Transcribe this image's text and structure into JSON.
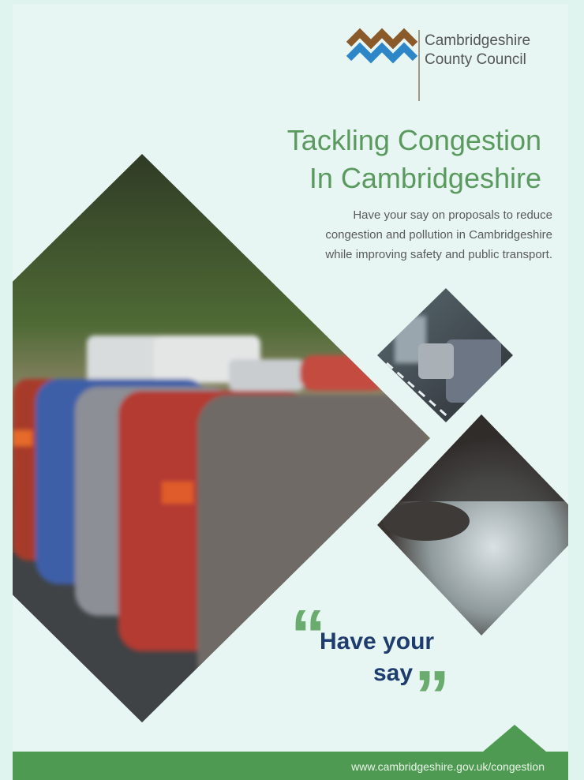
{
  "logo": {
    "name": [
      "Cambridgeshire",
      "County Council"
    ]
  },
  "title": [
    "Tackling Congestion",
    "In Cambridgeshire"
  ],
  "subtitle": [
    "Have your say on proposals to reduce",
    "congestion and pollution in Cambridgeshire",
    "while improving safety and public transport."
  ],
  "quote": {
    "open": "“",
    "text": [
      "Have your",
      "say"
    ],
    "close": "”"
  },
  "footer": {
    "url": "www.cambridgeshire.gov.uk/congestion"
  }
}
